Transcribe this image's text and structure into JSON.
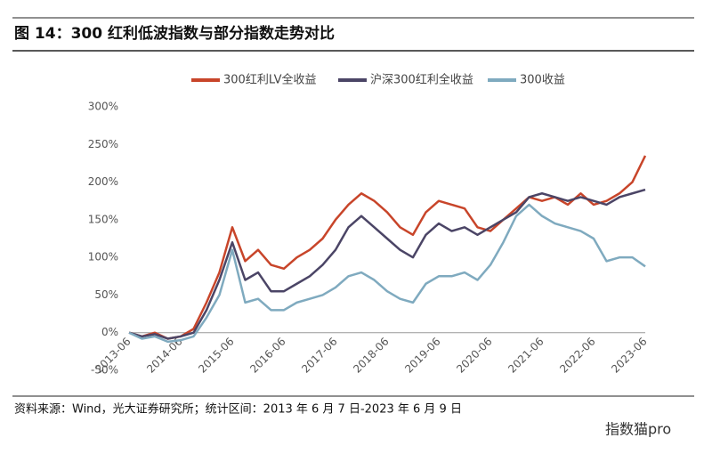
{
  "chart_data": {
    "type": "line",
    "title": "图 14：300 红利低波指数与部分指数走势对比",
    "source": "资料来源：Wind，光大证券研究所；统计区间：2013 年 6 月 7 日-2023 年 6 月 9 日",
    "watermark": "指数猫pro",
    "categories": [
      "2013-06",
      null,
      null,
      null,
      "2014-06",
      null,
      null,
      null,
      "2015-06",
      null,
      null,
      null,
      "2016-06",
      null,
      null,
      null,
      "2017-06",
      null,
      null,
      null,
      "2018-06",
      null,
      null,
      null,
      "2019-06",
      null,
      null,
      null,
      "2020-06",
      null,
      null,
      null,
      "2021-06",
      null,
      null,
      null,
      "2022-06",
      null,
      null,
      null,
      "2023-06"
    ],
    "series": [
      {
        "name": "300红利LV全收益",
        "color": "#c8452a",
        "values": [
          0,
          -5,
          0,
          -8,
          -5,
          5,
          40,
          80,
          140,
          95,
          110,
          90,
          85,
          100,
          110,
          125,
          150,
          170,
          185,
          175,
          160,
          140,
          130,
          160,
          175,
          170,
          165,
          140,
          135,
          150,
          165,
          180,
          175,
          180,
          170,
          185,
          170,
          175,
          185,
          200,
          235
        ]
      },
      {
        "name": "沪深300红利全收益",
        "color": "#4b4566",
        "values": [
          0,
          -5,
          -2,
          -8,
          -5,
          0,
          30,
          70,
          120,
          70,
          80,
          55,
          55,
          65,
          75,
          90,
          110,
          140,
          155,
          140,
          125,
          110,
          100,
          130,
          145,
          135,
          140,
          130,
          140,
          150,
          160,
          180,
          185,
          180,
          175,
          180,
          175,
          170,
          180,
          185,
          190
        ]
      },
      {
        "name": "300收益",
        "color": "#7faabf",
        "values": [
          0,
          -8,
          -5,
          -12,
          -10,
          -5,
          20,
          50,
          110,
          40,
          45,
          30,
          30,
          40,
          45,
          50,
          60,
          75,
          80,
          70,
          55,
          45,
          40,
          65,
          75,
          75,
          80,
          70,
          90,
          120,
          155,
          170,
          155,
          145,
          140,
          135,
          125,
          95,
          100,
          100,
          88
        ]
      }
    ],
    "ylim": [
      -50,
      300
    ],
    "yticks": [
      {
        "value": -50,
        "label": "-50%"
      },
      {
        "value": 0,
        "label": "0%"
      },
      {
        "value": 50,
        "label": "50%"
      },
      {
        "value": 100,
        "label": "100%"
      },
      {
        "value": 150,
        "label": "150%"
      },
      {
        "value": 200,
        "label": "200%"
      },
      {
        "value": 250,
        "label": "250%"
      },
      {
        "value": 300,
        "label": "300%"
      }
    ]
  }
}
